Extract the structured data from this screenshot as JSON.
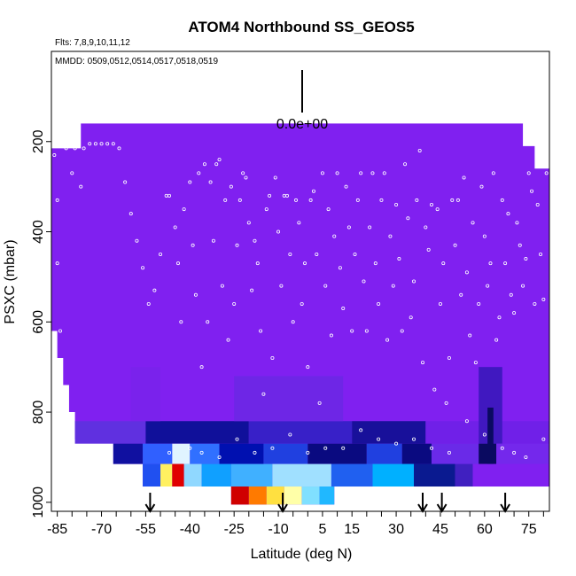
{
  "chart_data": {
    "type": "heatmap",
    "title": "ATOM4 Northbound SS_GEOS5",
    "flights_label": "Flts: 7,8,9,10,11,12",
    "dates_label": "MMDD: 0509,0512,0514,0517,0518,0519",
    "xlabel": "Latitude (deg N)",
    "ylabel": "PSXC (mbar)",
    "xlim": [
      -87,
      82
    ],
    "ylim": [
      1020,
      0
    ],
    "x_ticks": [
      "-85",
      "-70",
      "-55",
      "-40",
      "-25",
      "-10",
      "5",
      "15",
      "30",
      "45",
      "60",
      "75"
    ],
    "y_ticks": [
      "200",
      "400",
      "600",
      "800",
      "1000"
    ],
    "scale_label": "0.0e+00",
    "colors": {
      "background_field": "#8020f0",
      "point_outline": "#ffffff",
      "axis": "#000000"
    },
    "arrow_latitudes": [
      -53.5,
      -8.5,
      39,
      45.5,
      67
    ],
    "top_boundary": [
      {
        "lat": -87,
        "p": 215
      },
      {
        "lat": -77,
        "p": 215
      },
      {
        "lat": -77,
        "p": 160
      },
      {
        "lat": 73,
        "p": 160
      },
      {
        "lat": 73,
        "p": 210
      },
      {
        "lat": 77,
        "p": 210
      },
      {
        "lat": 77,
        "p": 260
      },
      {
        "lat": 82,
        "p": 260
      }
    ],
    "bottom_boundary": [
      {
        "lat": -87,
        "p": 620
      },
      {
        "lat": -85,
        "p": 620
      },
      {
        "lat": -85,
        "p": 680
      },
      {
        "lat": -83,
        "p": 680
      },
      {
        "lat": -83,
        "p": 740
      },
      {
        "lat": -81,
        "p": 740
      },
      {
        "lat": -81,
        "p": 800
      },
      {
        "lat": -79,
        "p": 800
      },
      {
        "lat": -79,
        "p": 860
      },
      {
        "lat": -66,
        "p": 860
      },
      {
        "lat": -66,
        "p": 915
      },
      {
        "lat": -56,
        "p": 915
      },
      {
        "lat": -56,
        "p": 965
      },
      {
        "lat": -26,
        "p": 965
      },
      {
        "lat": -26,
        "p": 1005
      },
      {
        "lat": 9,
        "p": 1005
      },
      {
        "lat": 9,
        "p": 965
      },
      {
        "lat": 82,
        "p": 965
      }
    ],
    "cells": [
      {
        "lat0": -79,
        "lat1": -55,
        "p0": 820,
        "p1": 870,
        "color": "#6030e0"
      },
      {
        "lat0": -55,
        "lat1": -20,
        "p0": 820,
        "p1": 870,
        "color": "#10109a"
      },
      {
        "lat0": -20,
        "lat1": 15,
        "p0": 820,
        "p1": 870,
        "color": "#3820c8"
      },
      {
        "lat0": 15,
        "lat1": 40,
        "p0": 820,
        "p1": 870,
        "color": "#18109a"
      },
      {
        "lat0": 40,
        "lat1": 82,
        "p0": 820,
        "p1": 870,
        "color": "#7020e8"
      },
      {
        "lat0": 58,
        "lat1": 66,
        "p0": 700,
        "p1": 870,
        "color": "#4018c0"
      },
      {
        "lat0": 61,
        "lat1": 63,
        "p0": 790,
        "p1": 920,
        "color": "#0a0a60"
      },
      {
        "lat0": -66,
        "lat1": -56,
        "p0": 870,
        "p1": 915,
        "color": "#1010a0"
      },
      {
        "lat0": -56,
        "lat1": -46,
        "p0": 870,
        "p1": 915,
        "color": "#3060ff"
      },
      {
        "lat0": -46,
        "lat1": -40,
        "p0": 870,
        "p1": 915,
        "color": "#e0f4ff"
      },
      {
        "lat0": -40,
        "lat1": -30,
        "p0": 870,
        "p1": 915,
        "color": "#3070ff"
      },
      {
        "lat0": -30,
        "lat1": -15,
        "p0": 870,
        "p1": 915,
        "color": "#0010b0"
      },
      {
        "lat0": -15,
        "lat1": 0,
        "p0": 870,
        "p1": 915,
        "color": "#2040e0"
      },
      {
        "lat0": 0,
        "lat1": 20,
        "p0": 870,
        "p1": 915,
        "color": "#0a0a80"
      },
      {
        "lat0": 20,
        "lat1": 32,
        "p0": 870,
        "p1": 915,
        "color": "#2040e0"
      },
      {
        "lat0": 32,
        "lat1": 42,
        "p0": 870,
        "p1": 915,
        "color": "#0a0a80"
      },
      {
        "lat0": 42,
        "lat1": 58,
        "p0": 870,
        "p1": 915,
        "color": "#6a2ae8"
      },
      {
        "lat0": 58,
        "lat1": 64,
        "p0": 870,
        "p1": 915,
        "color": "#0a0a60"
      },
      {
        "lat0": 64,
        "lat1": 82,
        "p0": 870,
        "p1": 915,
        "color": "#7428ec"
      },
      {
        "lat0": -56,
        "lat1": -50,
        "p0": 915,
        "p1": 965,
        "color": "#2050f0"
      },
      {
        "lat0": -50,
        "lat1": -46,
        "p0": 915,
        "p1": 965,
        "color": "#fff060"
      },
      {
        "lat0": -46,
        "lat1": -42,
        "p0": 915,
        "p1": 965,
        "color": "#e00000"
      },
      {
        "lat0": -42,
        "lat1": -36,
        "p0": 915,
        "p1": 965,
        "color": "#90d8ff"
      },
      {
        "lat0": -36,
        "lat1": -26,
        "p0": 915,
        "p1": 965,
        "color": "#10a0ff"
      },
      {
        "lat0": -26,
        "lat1": -12,
        "p0": 915,
        "p1": 965,
        "color": "#40b0ff"
      },
      {
        "lat0": -12,
        "lat1": 8,
        "p0": 915,
        "p1": 965,
        "color": "#a0e0ff"
      },
      {
        "lat0": 8,
        "lat1": 22,
        "p0": 915,
        "p1": 965,
        "color": "#2060f0"
      },
      {
        "lat0": 22,
        "lat1": 36,
        "p0": 915,
        "p1": 965,
        "color": "#00b0ff"
      },
      {
        "lat0": 36,
        "lat1": 50,
        "p0": 915,
        "p1": 965,
        "color": "#0a1a90"
      },
      {
        "lat0": 50,
        "lat1": 56,
        "p0": 915,
        "p1": 965,
        "color": "#4020c0"
      },
      {
        "lat0": 56,
        "lat1": 82,
        "p0": 915,
        "p1": 965,
        "color": "#8020f0"
      },
      {
        "lat0": -26,
        "lat1": -20,
        "p0": 965,
        "p1": 1005,
        "color": "#d00000"
      },
      {
        "lat0": -20,
        "lat1": -14,
        "p0": 965,
        "p1": 1005,
        "color": "#ff7a00"
      },
      {
        "lat0": -14,
        "lat1": -8,
        "p0": 965,
        "p1": 1005,
        "color": "#ffe040"
      },
      {
        "lat0": -8,
        "lat1": -2,
        "p0": 965,
        "p1": 1005,
        "color": "#ffffa8"
      },
      {
        "lat0": -2,
        "lat1": 4,
        "p0": 965,
        "p1": 1005,
        "color": "#80e0ff"
      },
      {
        "lat0": 4,
        "lat1": 9,
        "p0": 965,
        "p1": 1005,
        "color": "#20b8ff"
      },
      {
        "lat0": -60,
        "lat1": -50,
        "p0": 700,
        "p1": 820,
        "color": "#7a22ec"
      },
      {
        "lat0": -25,
        "lat1": 12,
        "p0": 720,
        "p1": 820,
        "color": "#6e26e6"
      }
    ],
    "points": [
      [
        -86,
        230
      ],
      [
        -85,
        330
      ],
      [
        -85,
        470
      ],
      [
        -84,
        620
      ],
      [
        -82,
        215
      ],
      [
        -80,
        270
      ],
      [
        -79,
        215
      ],
      [
        -77,
        300
      ],
      [
        -76,
        215
      ],
      [
        -74,
        205
      ],
      [
        -72,
        205
      ],
      [
        -70,
        205
      ],
      [
        -68,
        205
      ],
      [
        -66,
        205
      ],
      [
        -64,
        215
      ],
      [
        -62,
        290
      ],
      [
        -60,
        360
      ],
      [
        -58,
        420
      ],
      [
        -56,
        480
      ],
      [
        -54,
        560
      ],
      [
        -52,
        530
      ],
      [
        -50,
        450
      ],
      [
        -48,
        320
      ],
      [
        -47,
        320
      ],
      [
        -45,
        390
      ],
      [
        -44,
        470
      ],
      [
        -43,
        600
      ],
      [
        -42,
        350
      ],
      [
        -40,
        290
      ],
      [
        -39,
        430
      ],
      [
        -38,
        540
      ],
      [
        -37,
        270
      ],
      [
        -36,
        700
      ],
      [
        -35,
        250
      ],
      [
        -34,
        600
      ],
      [
        -33,
        290
      ],
      [
        -32,
        420
      ],
      [
        -31,
        250
      ],
      [
        -30,
        240
      ],
      [
        -29,
        520
      ],
      [
        -28,
        330
      ],
      [
        -27,
        640
      ],
      [
        -26,
        300
      ],
      [
        -25,
        560
      ],
      [
        -24,
        430
      ],
      [
        -23,
        330
      ],
      [
        -22,
        270
      ],
      [
        -21,
        280
      ],
      [
        -20,
        380
      ],
      [
        -19,
        530
      ],
      [
        -18,
        420
      ],
      [
        -17,
        470
      ],
      [
        -16,
        620
      ],
      [
        -15,
        760
      ],
      [
        -14,
        350
      ],
      [
        -13,
        320
      ],
      [
        -12,
        680
      ],
      [
        -11,
        280
      ],
      [
        -10,
        400
      ],
      [
        -9,
        520
      ],
      [
        -8,
        320
      ],
      [
        -7,
        320
      ],
      [
        -6,
        450
      ],
      [
        -5,
        600
      ],
      [
        -4,
        330
      ],
      [
        -3,
        380
      ],
      [
        -2,
        560
      ],
      [
        -1,
        470
      ],
      [
        0,
        700
      ],
      [
        1,
        330
      ],
      [
        2,
        310
      ],
      [
        3,
        450
      ],
      [
        4,
        780
      ],
      [
        5,
        270
      ],
      [
        6,
        520
      ],
      [
        7,
        350
      ],
      [
        8,
        630
      ],
      [
        9,
        410
      ],
      [
        10,
        270
      ],
      [
        11,
        480
      ],
      [
        12,
        570
      ],
      [
        13,
        300
      ],
      [
        14,
        390
      ],
      [
        15,
        620
      ],
      [
        16,
        450
      ],
      [
        17,
        330
      ],
      [
        18,
        270
      ],
      [
        19,
        510
      ],
      [
        20,
        620
      ],
      [
        21,
        390
      ],
      [
        22,
        270
      ],
      [
        23,
        470
      ],
      [
        24,
        560
      ],
      [
        25,
        330
      ],
      [
        26,
        270
      ],
      [
        27,
        640
      ],
      [
        28,
        410
      ],
      [
        29,
        520
      ],
      [
        30,
        340
      ],
      [
        31,
        460
      ],
      [
        32,
        620
      ],
      [
        33,
        250
      ],
      [
        34,
        370
      ],
      [
        35,
        590
      ],
      [
        36,
        510
      ],
      [
        37,
        330
      ],
      [
        38,
        220
      ],
      [
        39,
        690
      ],
      [
        40,
        390
      ],
      [
        41,
        440
      ],
      [
        42,
        340
      ],
      [
        43,
        750
      ],
      [
        44,
        350
      ],
      [
        45,
        560
      ],
      [
        46,
        470
      ],
      [
        47,
        780
      ],
      [
        48,
        680
      ],
      [
        49,
        330
      ],
      [
        50,
        430
      ],
      [
        51,
        330
      ],
      [
        52,
        540
      ],
      [
        53,
        280
      ],
      [
        54,
        490
      ],
      [
        55,
        630
      ],
      [
        56,
        380
      ],
      [
        57,
        690
      ],
      [
        58,
        560
      ],
      [
        59,
        300
      ],
      [
        60,
        410
      ],
      [
        61,
        520
      ],
      [
        62,
        470
      ],
      [
        63,
        270
      ],
      [
        64,
        640
      ],
      [
        65,
        590
      ],
      [
        66,
        330
      ],
      [
        67,
        470
      ],
      [
        68,
        360
      ],
      [
        69,
        540
      ],
      [
        70,
        580
      ],
      [
        71,
        380
      ],
      [
        72,
        430
      ],
      [
        73,
        520
      ],
      [
        74,
        460
      ],
      [
        75,
        270
      ],
      [
        76,
        310
      ],
      [
        77,
        560
      ],
      [
        78,
        340
      ],
      [
        79,
        450
      ],
      [
        80,
        550
      ],
      [
        81,
        270
      ],
      [
        -47,
        890
      ],
      [
        -40,
        880
      ],
      [
        -36,
        890
      ],
      [
        -30,
        900
      ],
      [
        -24,
        860
      ],
      [
        -18,
        890
      ],
      [
        -12,
        880
      ],
      [
        -6,
        850
      ],
      [
        0,
        890
      ],
      [
        6,
        880
      ],
      [
        12,
        880
      ],
      [
        18,
        840
      ],
      [
        24,
        860
      ],
      [
        30,
        870
      ],
      [
        36,
        860
      ],
      [
        42,
        880
      ],
      [
        48,
        890
      ],
      [
        54,
        820
      ],
      [
        60,
        850
      ],
      [
        66,
        880
      ],
      [
        70,
        890
      ],
      [
        74,
        900
      ],
      [
        80,
        860
      ]
    ]
  }
}
